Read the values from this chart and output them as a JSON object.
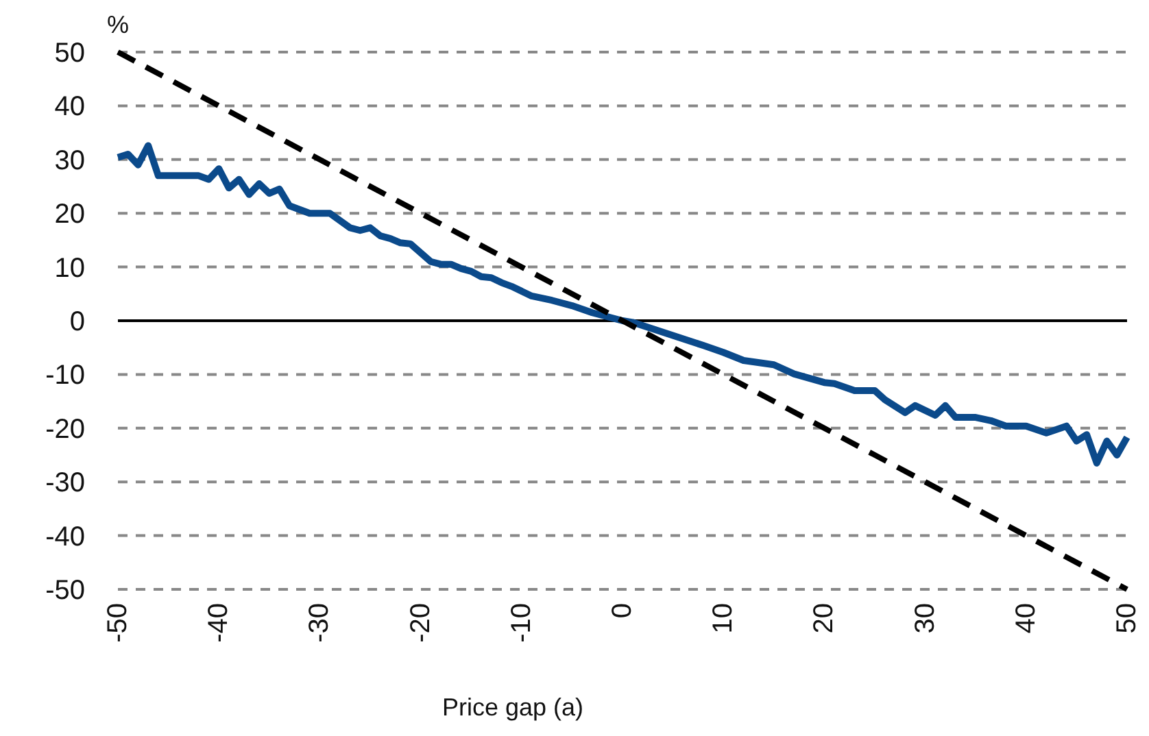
{
  "chart_data": {
    "type": "line",
    "xlabel": "Price gap (a)",
    "ylabel": "%",
    "xlim": [
      -50,
      50
    ],
    "xticks": [
      -50,
      -40,
      -30,
      -20,
      -10,
      0,
      10,
      20,
      30,
      40,
      50
    ],
    "ylim": [
      -50,
      50
    ],
    "yticks": [
      -50,
      -40,
      -30,
      -20,
      -10,
      0,
      10,
      20,
      30,
      40,
      50
    ],
    "grid": "y",
    "ref_lines": [
      {
        "axis": "y",
        "value": 0,
        "color": "#000000"
      }
    ],
    "series": [
      {
        "color": "#0b4a8b",
        "line_style": "solid",
        "x": [
          -50,
          -49,
          -48,
          -47,
          -46,
          -44,
          -42,
          -41,
          -40,
          -39,
          -38,
          -37,
          -36,
          -35,
          -34,
          -33,
          -31,
          -29,
          -27,
          -26,
          -25,
          -24,
          -23,
          -22,
          -21,
          -19,
          -18,
          -17,
          -16,
          -15,
          -14,
          -13,
          -12,
          -11,
          -9,
          -7,
          -5,
          -3,
          0,
          1,
          8,
          10,
          12,
          15,
          17,
          20,
          21,
          23,
          25,
          26,
          28,
          29,
          31,
          32,
          33,
          35,
          36.5,
          38,
          40,
          42,
          44,
          45,
          46,
          47,
          48,
          49,
          50
        ],
        "values": [
          30.4,
          31,
          29,
          32.6,
          27,
          27,
          27,
          26.3,
          28.3,
          24.7,
          26.3,
          23.5,
          25.5,
          23.7,
          24.5,
          21.4,
          20,
          20,
          17.3,
          16.8,
          17.3,
          15.8,
          15.3,
          14.5,
          14.3,
          11,
          10.5,
          10.5,
          9.7,
          9.2,
          8.2,
          8,
          7.1,
          6.4,
          4.6,
          3.8,
          2.8,
          1.5,
          0,
          -0.3,
          -4.6,
          -5.9,
          -7.4,
          -8.2,
          -9.9,
          -11.5,
          -11.7,
          -13,
          -13,
          -14.7,
          -17.1,
          -15.8,
          -17.6,
          -15.8,
          -18,
          -18,
          -18.6,
          -19.6,
          -19.6,
          -20.9,
          -19.6,
          -22.4,
          -21.2,
          -26.5,
          -22.4,
          -25,
          -21.7
        ]
      },
      {
        "color": "#000000",
        "line_style": "dashed",
        "x": [
          -50,
          50
        ],
        "values": [
          50,
          -50
        ]
      }
    ]
  }
}
